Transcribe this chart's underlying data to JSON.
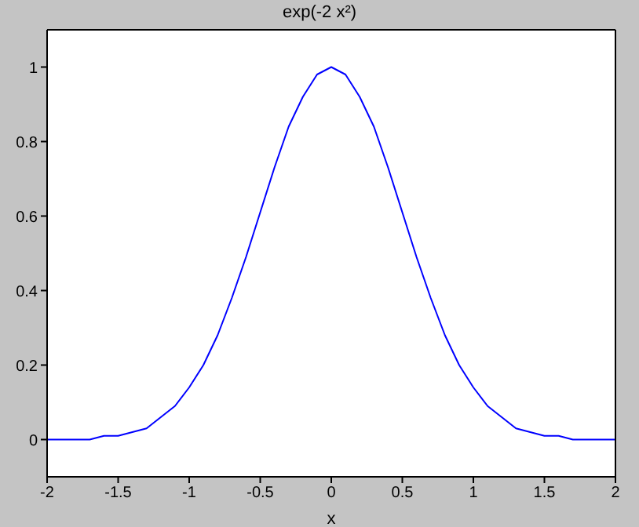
{
  "chart_data": {
    "type": "line",
    "title": "exp(-2 x²)",
    "xlabel": "x",
    "x": [
      -2,
      -1.9,
      -1.8,
      -1.7,
      -1.6,
      -1.5,
      -1.4,
      -1.3,
      -1.2,
      -1.1,
      -1,
      -0.9,
      -0.8,
      -0.7,
      -0.6,
      -0.5,
      -0.4,
      -0.3,
      -0.2,
      -0.1,
      0,
      0.1,
      0.2,
      0.3,
      0.4,
      0.5,
      0.6,
      0.7,
      0.8,
      0.9,
      1,
      1.1,
      1.2,
      1.3,
      1.4,
      1.5,
      1.6,
      1.7,
      1.8,
      1.9,
      2
    ],
    "series": [
      {
        "color": "#0000ff",
        "values": [
          0,
          0,
          0,
          0,
          0.01,
          0.01,
          0.02,
          0.03,
          0.06,
          0.09,
          0.14,
          0.2,
          0.28,
          0.38,
          0.49,
          0.61,
          0.73,
          0.84,
          0.92,
          0.98,
          1,
          0.98,
          0.92,
          0.84,
          0.73,
          0.61,
          0.49,
          0.38,
          0.28,
          0.2,
          0.14,
          0.09,
          0.06,
          0.03,
          0.02,
          0.01,
          0.01,
          0,
          0,
          0,
          0
        ]
      }
    ],
    "xlim": [
      -2,
      2
    ],
    "xticks": [
      -2,
      -1.5,
      -1,
      -0.5,
      0,
      0.5,
      1,
      1.5,
      2
    ],
    "ylim": [
      -0.1,
      1.1
    ],
    "yticks": [
      0,
      0.2,
      0.4,
      0.6,
      0.8,
      1
    ],
    "grid": false,
    "legend": false,
    "marker": "none",
    "line_style": "solid"
  }
}
